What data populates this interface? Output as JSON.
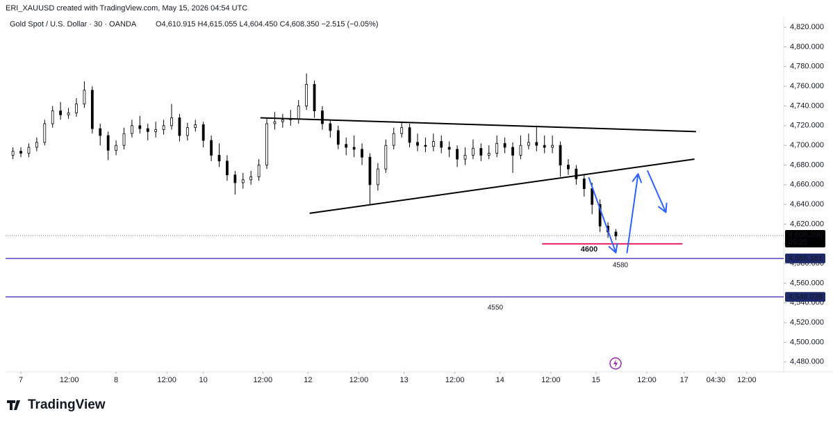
{
  "chart_data": {
    "type": "candlestick",
    "header": "ERI_XAUUSD created with TradingView.com, May 15, 2026 04:54 UTC",
    "title": "Gold Spot / U.S. Dollar · 30 · OANDA",
    "ohlc_legend": "O4,610.915 H4,615.055 L4,604.450 C4,608.350 −2.515 (−0.05%)",
    "x": [
      -1,
      0,
      1,
      2,
      3,
      4,
      5,
      6,
      7,
      8,
      9,
      10,
      11,
      12,
      13,
      14,
      15,
      16,
      17,
      18,
      19,
      20,
      21,
      22,
      23,
      24,
      25,
      26,
      27,
      28,
      29,
      30,
      31,
      32,
      33,
      34,
      35,
      36,
      37,
      38,
      39,
      40,
      41,
      42,
      43,
      44,
      45,
      46,
      47,
      48,
      49,
      50,
      51,
      52,
      53,
      54,
      55,
      56,
      57,
      58,
      59,
      60,
      61,
      62,
      63,
      64,
      65,
      66,
      67,
      68,
      69,
      70,
      71,
      72,
      73,
      74,
      75
    ],
    "open": [
      4690,
      4694,
      4692,
      4698,
      4703,
      4722,
      4735,
      4731,
      4733,
      4742,
      4756,
      4717,
      4710,
      4695,
      4700,
      4712,
      4720,
      4717,
      4714,
      4716,
      4720,
      4728,
      4710,
      4718,
      4721,
      4705,
      4690,
      4684,
      4670,
      4662,
      4665,
      4668,
      4680,
      4722,
      4724,
      4726,
      4727,
      4740,
      4762,
      4735,
      4722,
      4715,
      4701,
      4698,
      4696,
      4688,
      4660,
      4676,
      4700,
      4712,
      4718,
      4703,
      4700,
      4699,
      4704,
      4698,
      4696,
      4686,
      4690,
      4697,
      4690,
      4692,
      4702,
      4698,
      4690,
      4700,
      4703,
      4700,
      4698,
      4700,
      4680,
      4676,
      4666,
      4656,
      4640,
      4618,
      4612
    ],
    "high": [
      4698,
      4698,
      4702,
      4708,
      4726,
      4740,
      4744,
      4738,
      4748,
      4765,
      4760,
      4722,
      4714,
      4705,
      4718,
      4726,
      4730,
      4722,
      4724,
      4726,
      4742,
      4732,
      4723,
      4726,
      4724,
      4710,
      4702,
      4690,
      4674,
      4672,
      4674,
      4686,
      4728,
      4734,
      4732,
      4736,
      4746,
      4773,
      4766,
      4740,
      4726,
      4720,
      4708,
      4710,
      4702,
      4692,
      4682,
      4706,
      4718,
      4724,
      4722,
      4712,
      4708,
      4712,
      4710,
      4704,
      4700,
      4698,
      4706,
      4702,
      4700,
      4710,
      4708,
      4703,
      4710,
      4712,
      4720,
      4710,
      4710,
      4704,
      4686,
      4680,
      4670,
      4662,
      4645,
      4622,
      4615
    ],
    "low": [
      4686,
      4688,
      4688,
      4694,
      4700,
      4718,
      4726,
      4727,
      4729,
      4738,
      4712,
      4700,
      4685,
      4690,
      4696,
      4708,
      4712,
      4705,
      4708,
      4711,
      4716,
      4704,
      4705,
      4714,
      4698,
      4684,
      4678,
      4664,
      4650,
      4656,
      4660,
      4664,
      4676,
      4716,
      4718,
      4720,
      4722,
      4736,
      4728,
      4716,
      4708,
      4696,
      4690,
      4688,
      4680,
      4640,
      4654,
      4672,
      4696,
      4708,
      4698,
      4694,
      4693,
      4694,
      4692,
      4688,
      4678,
      4680,
      4686,
      4684,
      4686,
      4688,
      4692,
      4672,
      4686,
      4696,
      4694,
      4692,
      4692,
      4668,
      4670,
      4660,
      4648,
      4630,
      4612,
      4606,
      4604
    ],
    "close": [
      4694,
      4692,
      4698,
      4703,
      4722,
      4735,
      4731,
      4733,
      4742,
      4756,
      4717,
      4710,
      4695,
      4700,
      4712,
      4720,
      4717,
      4714,
      4716,
      4720,
      4728,
      4710,
      4718,
      4721,
      4705,
      4690,
      4684,
      4670,
      4662,
      4665,
      4668,
      4680,
      4722,
      4724,
      4726,
      4727,
      4740,
      4762,
      4735,
      4722,
      4715,
      4701,
      4698,
      4696,
      4688,
      4660,
      4676,
      4700,
      4712,
      4718,
      4703,
      4700,
      4699,
      4704,
      4698,
      4696,
      4686,
      4690,
      4697,
      4690,
      4692,
      4702,
      4698,
      4690,
      4700,
      4703,
      4700,
      4698,
      4700,
      4680,
      4676,
      4666,
      4656,
      4640,
      4618,
      4612,
      4608
    ],
    "up_color": "#ffffff",
    "down_color": "#000000",
    "xlim": [
      -1.93,
      96.15
    ],
    "ylim": [
      4470,
      4830
    ],
    "xticks": [
      {
        "value": 0,
        "label": "7"
      },
      {
        "value": 6.1,
        "label": "12:00"
      },
      {
        "value": 12,
        "label": "8"
      },
      {
        "value": 18.4,
        "label": "12:00"
      },
      {
        "value": 23,
        "label": "10"
      },
      {
        "value": 30.5,
        "label": "12:00"
      },
      {
        "value": 36.2,
        "label": "12"
      },
      {
        "value": 42.6,
        "label": "12:00"
      },
      {
        "value": 48.3,
        "label": "13"
      },
      {
        "value": 54.7,
        "label": "12:00"
      },
      {
        "value": 60.4,
        "label": "14"
      },
      {
        "value": 66.8,
        "label": "12:00"
      },
      {
        "value": 72.5,
        "label": "15"
      },
      {
        "value": 78.9,
        "label": "12:00"
      },
      {
        "value": 83.6,
        "label": "17"
      },
      {
        "value": 87.6,
        "label": "04:30"
      },
      {
        "value": 91.5,
        "label": "12:00"
      }
    ],
    "yticks": [
      {
        "value": 4480,
        "label": "4,480.000"
      },
      {
        "value": 4500,
        "label": "4,500.000"
      },
      {
        "value": 4520,
        "label": "4,520.000"
      },
      {
        "value": 4540,
        "label": "4,540.000"
      },
      {
        "value": 4560,
        "label": "4,560.000"
      },
      {
        "value": 4580,
        "label": "4,580.000"
      },
      {
        "value": 4600,
        "label": "4,600.000"
      },
      {
        "value": 4620,
        "label": "4,620.000"
      },
      {
        "value": 4640,
        "label": "4,640.000"
      },
      {
        "value": 4660,
        "label": "4,660.000"
      },
      {
        "value": 4680,
        "label": "4,680.000"
      },
      {
        "value": 4700,
        "label": "4,700.000"
      },
      {
        "value": 4720,
        "label": "4,720.000"
      },
      {
        "value": 4740,
        "label": "4,740.000"
      },
      {
        "value": 4760,
        "label": "4,760.000"
      },
      {
        "value": 4780,
        "label": "4,780.000"
      },
      {
        "value": 4800,
        "label": "4,800.000"
      },
      {
        "value": 4820,
        "label": "4,820.000"
      }
    ],
    "grid": false,
    "trendlines": [
      {
        "x": [
          30.2,
          85.1
        ],
        "y": [
          4728,
          4714
        ],
        "color": "#000000"
      },
      {
        "x": [
          36.4,
          84.9
        ],
        "y": [
          4631,
          4686
        ],
        "color": "#000000"
      },
      {
        "x": [
          65.7,
          83.4
        ],
        "y": [
          4600,
          4600
        ],
        "color": "#e91e63"
      }
    ],
    "arrows": [
      {
        "x": [
          71.6,
          75.0
        ],
        "y": [
          4667,
          4591
        ],
        "color": "#2962ff"
      },
      {
        "x": [
          76.4,
          77.8
        ],
        "y": [
          4591,
          4671
        ],
        "color": "#2962ff"
      },
      {
        "x": [
          79.0,
          81.3
        ],
        "y": [
          4674,
          4632
        ],
        "color": "#2962ff"
      }
    ],
    "levels": [
      {
        "value": 4585.181,
        "label": "4,585.181",
        "color": "#5b3fc4"
      },
      {
        "value": 4546.038,
        "label": "4,546.038",
        "color": "#5b3fc4"
      }
    ],
    "current_price": {
      "value": 4608.35,
      "label": "4,608.350",
      "countdown": "05:25"
    },
    "annotations": [
      {
        "text": "4600",
        "color": "#e91e63"
      },
      {
        "text": "4580",
        "color": "#9c27b0"
      },
      {
        "text": "4550",
        "color": "#9c27b0"
      }
    ],
    "brand": "TradingView"
  }
}
